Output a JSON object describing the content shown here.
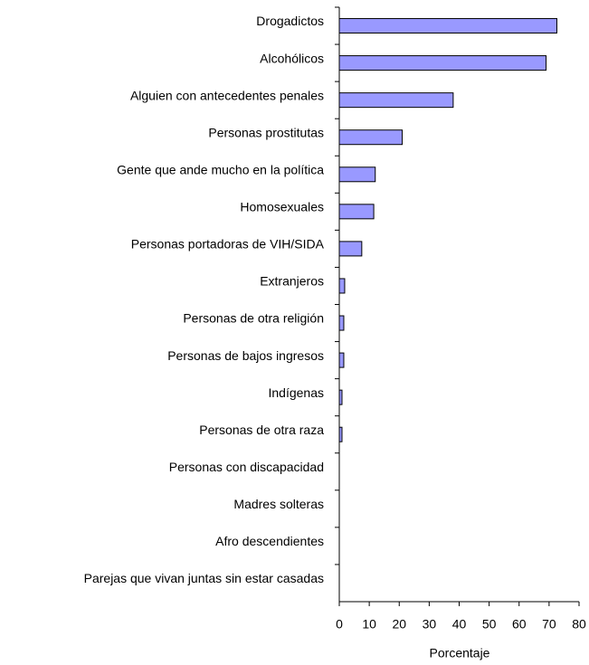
{
  "chart_data": {
    "type": "barh",
    "categories": [
      "Drogadictos",
      "Alcohólicos",
      "Alguien con antecedentes penales",
      "Personas prostitutas",
      "Gente que ande mucho en la política",
      "Homosexuales",
      "Personas portadoras de VIH/SIDA",
      "Extranjeros",
      "Personas de otra religión",
      "Personas de bajos ingresos",
      "Indígenas",
      "Personas de otra raza",
      "Personas con discapacidad",
      "Madres solteras",
      "Afro descendientes",
      "Parejas que vivan juntas sin estar casadas"
    ],
    "values": [
      72.6,
      69,
      38,
      21,
      12,
      11.5,
      7.5,
      1.8,
      1.5,
      1.5,
      0.9,
      0.9,
      0,
      0,
      0,
      0
    ],
    "color": "#9999ff",
    "x_label": "Porcentaje",
    "xlim": [
      0,
      80
    ],
    "xticks": [
      0,
      10,
      20,
      30,
      40,
      50,
      60,
      70,
      80
    ]
  }
}
